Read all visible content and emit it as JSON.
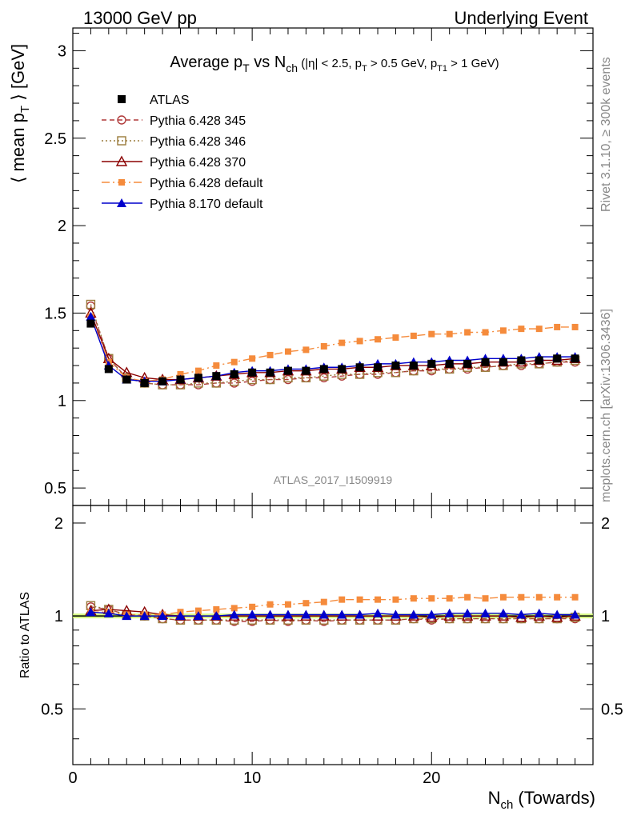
{
  "header": {
    "left": "13000 GeV pp",
    "right": "Underlying Event"
  },
  "side_text": {
    "rivet": "Rivet 3.1.10, ≥ 300k events",
    "mcplots": "mcplots.cern.ch [arXiv:1306.3436]"
  },
  "analysis_id": "ATLAS_2017_I1509919",
  "chart_data": {
    "type": "line",
    "title": "Average pT vs Nch (|η| < 2.5, pT > 0.5 GeV, pT1 > 1 GeV)",
    "xlabel": "Nch (Towards)",
    "ylabel": "⟨ mean pT ⟩ [GeV]",
    "ratio_ylabel": "Ratio to ATLAS",
    "xlim": [
      0,
      29
    ],
    "ylim": [
      0.4,
      3.13
    ],
    "ratio_ylim": [
      0.33,
      2.28
    ],
    "yticks": [
      "0.5",
      "1",
      "1.5",
      "2",
      "2.5",
      "3"
    ],
    "ratio_yticks": [
      "0.5",
      "1",
      "2"
    ],
    "xticks": [
      "0",
      "10",
      "20"
    ],
    "legend_position": "top-left",
    "x": [
      1,
      2,
      3,
      4,
      5,
      6,
      7,
      8,
      9,
      10,
      11,
      12,
      13,
      14,
      15,
      16,
      17,
      18,
      19,
      20,
      21,
      22,
      23,
      24,
      25,
      26,
      27,
      28
    ],
    "series": [
      {
        "name": "ATLAS",
        "color": "#000000",
        "marker": "filled-square",
        "line": "none",
        "values": [
          1.44,
          1.18,
          1.12,
          1.1,
          1.11,
          1.12,
          1.13,
          1.14,
          1.15,
          1.16,
          1.16,
          1.17,
          1.17,
          1.18,
          1.18,
          1.19,
          1.19,
          1.2,
          1.2,
          1.21,
          1.21,
          1.21,
          1.22,
          1.22,
          1.23,
          1.23,
          1.24,
          1.24
        ]
      },
      {
        "name": "Pythia 6.428 345",
        "color": "#b03a3a",
        "marker": "open-circle",
        "line": "dashed",
        "values": [
          1.54,
          1.24,
          1.13,
          1.1,
          1.09,
          1.09,
          1.09,
          1.1,
          1.1,
          1.11,
          1.12,
          1.12,
          1.13,
          1.13,
          1.14,
          1.15,
          1.15,
          1.16,
          1.17,
          1.17,
          1.18,
          1.18,
          1.19,
          1.2,
          1.2,
          1.21,
          1.22,
          1.22
        ]
      },
      {
        "name": "Pythia 6.428 346",
        "color": "#9a7a3a",
        "marker": "open-square",
        "line": "dotted",
        "values": [
          1.55,
          1.24,
          1.13,
          1.1,
          1.09,
          1.09,
          1.1,
          1.1,
          1.11,
          1.12,
          1.12,
          1.13,
          1.13,
          1.14,
          1.15,
          1.15,
          1.16,
          1.16,
          1.17,
          1.18,
          1.18,
          1.19,
          1.19,
          1.2,
          1.21,
          1.21,
          1.22,
          1.23
        ]
      },
      {
        "name": "Pythia 6.428 370",
        "color": "#8b0000",
        "marker": "open-triangle",
        "line": "solid",
        "values": [
          1.5,
          1.24,
          1.16,
          1.13,
          1.12,
          1.12,
          1.13,
          1.14,
          1.15,
          1.16,
          1.16,
          1.17,
          1.17,
          1.18,
          1.18,
          1.19,
          1.19,
          1.2,
          1.2,
          1.2,
          1.21,
          1.21,
          1.22,
          1.22,
          1.22,
          1.23,
          1.23,
          1.24
        ]
      },
      {
        "name": "Pythia 6.428 default",
        "color": "#f58b3c",
        "marker": "filled-square-small",
        "line": "dashdot",
        "values": [
          1.48,
          1.22,
          1.13,
          1.11,
          1.12,
          1.15,
          1.17,
          1.2,
          1.22,
          1.24,
          1.26,
          1.28,
          1.29,
          1.31,
          1.33,
          1.34,
          1.35,
          1.36,
          1.37,
          1.38,
          1.38,
          1.39,
          1.39,
          1.4,
          1.41,
          1.41,
          1.42,
          1.42
        ]
      },
      {
        "name": "Pythia 8.170 default",
        "color": "#0000cc",
        "marker": "filled-triangle",
        "line": "solid",
        "values": [
          1.48,
          1.2,
          1.12,
          1.11,
          1.11,
          1.12,
          1.13,
          1.14,
          1.16,
          1.17,
          1.17,
          1.18,
          1.18,
          1.19,
          1.19,
          1.2,
          1.21,
          1.21,
          1.22,
          1.22,
          1.23,
          1.23,
          1.24,
          1.24,
          1.24,
          1.25,
          1.25,
          1.25
        ]
      }
    ],
    "ratio_series": [
      {
        "name": "Pythia 6.428 345",
        "values": [
          1.07,
          1.05,
          1.01,
          1.0,
          0.98,
          0.97,
          0.97,
          0.97,
          0.96,
          0.96,
          0.97,
          0.96,
          0.97,
          0.96,
          0.97,
          0.97,
          0.97,
          0.97,
          0.98,
          0.97,
          0.98,
          0.98,
          0.98,
          0.98,
          0.98,
          0.98,
          0.98,
          0.98
        ]
      },
      {
        "name": "Pythia 6.428 346",
        "values": [
          1.08,
          1.05,
          1.01,
          1.0,
          0.98,
          0.97,
          0.97,
          0.97,
          0.97,
          0.97,
          0.97,
          0.97,
          0.97,
          0.97,
          0.97,
          0.97,
          0.97,
          0.97,
          0.98,
          0.98,
          0.98,
          0.98,
          0.98,
          0.98,
          0.98,
          0.98,
          0.98,
          0.99
        ]
      },
      {
        "name": "Pythia 6.428 370",
        "values": [
          1.04,
          1.05,
          1.04,
          1.03,
          1.01,
          1.0,
          1.0,
          1.0,
          1.0,
          1.0,
          1.0,
          1.0,
          1.0,
          1.0,
          1.0,
          1.0,
          1.0,
          1.0,
          1.0,
          0.99,
          1.0,
          1.0,
          1.0,
          1.0,
          0.99,
          1.0,
          0.99,
          1.0
        ]
      },
      {
        "name": "Pythia 6.428 default",
        "values": [
          1.03,
          1.03,
          1.01,
          1.01,
          1.01,
          1.03,
          1.04,
          1.05,
          1.06,
          1.07,
          1.09,
          1.09,
          1.1,
          1.11,
          1.13,
          1.13,
          1.13,
          1.13,
          1.14,
          1.14,
          1.14,
          1.15,
          1.14,
          1.15,
          1.15,
          1.15,
          1.15,
          1.15
        ]
      },
      {
        "name": "Pythia 8.170 default",
        "values": [
          1.03,
          1.02,
          1.0,
          1.0,
          1.0,
          1.0,
          1.0,
          1.0,
          1.01,
          1.01,
          1.01,
          1.01,
          1.01,
          1.01,
          1.01,
          1.01,
          1.02,
          1.01,
          1.01,
          1.01,
          1.02,
          1.02,
          1.02,
          1.02,
          1.01,
          1.02,
          1.01,
          1.01
        ]
      }
    ]
  }
}
